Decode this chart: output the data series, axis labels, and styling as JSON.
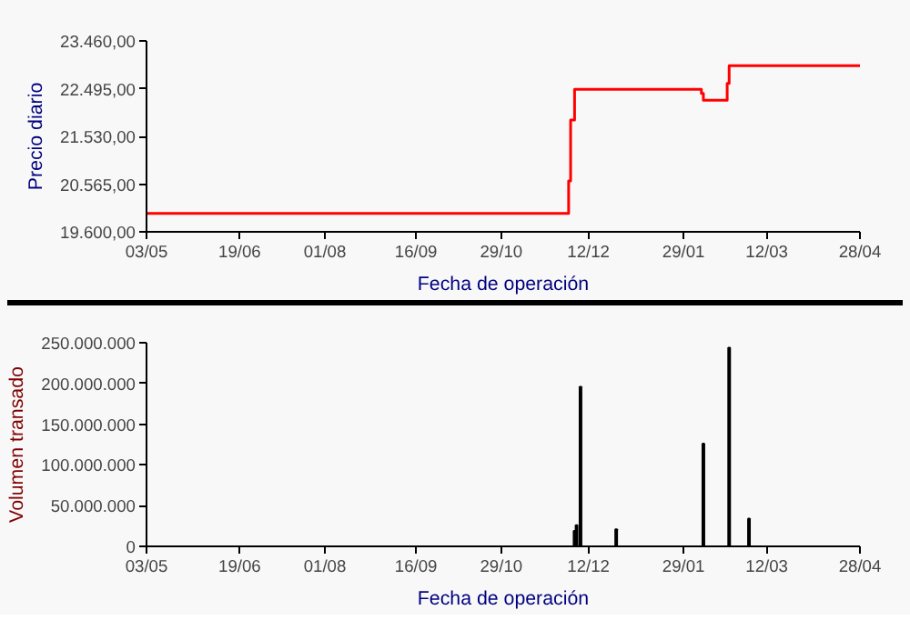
{
  "chart_data": [
    {
      "type": "step",
      "xlabel": "Fecha de operación",
      "ylabel": "Precio diario",
      "x": [
        "2006-05-03",
        "2006-12-02",
        "2006-12-03",
        "2006-12-05",
        "2007-02-07",
        "2007-02-08",
        "2007-02-20",
        "2007-02-21",
        "2007-04-28"
      ],
      "series": [
        {
          "color": "#ff0000",
          "values": [
            19970,
            20630,
            21860,
            22480,
            22400,
            22260,
            22600,
            22960,
            22960
          ]
        }
      ],
      "xlim": [
        "2006-05-03",
        "2007-04-28"
      ],
      "xticks": [
        {
          "value": "2006-05-03",
          "label": "03/05"
        },
        {
          "value": "2006-06-19",
          "label": "19/06"
        },
        {
          "value": "2006-08-01",
          "label": "01/08"
        },
        {
          "value": "2006-09-16",
          "label": "16/09"
        },
        {
          "value": "2006-10-29",
          "label": "29/10"
        },
        {
          "value": "2006-12-12",
          "label": "12/12"
        },
        {
          "value": "2007-01-29",
          "label": "29/01"
        },
        {
          "value": "2007-03-12",
          "label": "12/03"
        },
        {
          "value": "2007-04-28",
          "label": "28/04"
        }
      ],
      "ylim": [
        19600,
        23460
      ],
      "yticks": [
        {
          "value": 19600,
          "label": "19.600,00"
        },
        {
          "value": 20565,
          "label": "20.565,00"
        },
        {
          "value": 21530,
          "label": "21.530,00"
        },
        {
          "value": 22495,
          "label": "22.495,00"
        },
        {
          "value": 23460,
          "label": "23.460,00"
        }
      ],
      "grid": false
    },
    {
      "type": "bar",
      "xlabel": "Fecha de operación",
      "ylabel": "Volumen transado",
      "x": [
        "2006-12-05",
        "2006-12-06",
        "2006-12-08",
        "2006-12-26",
        "2007-02-08",
        "2007-02-21",
        "2007-03-03"
      ],
      "series": [
        {
          "color": "#000000",
          "values": [
            19000000,
            26000000,
            196000000,
            21000000,
            126000000,
            244000000,
            34000000
          ]
        }
      ],
      "xlim": [
        "2006-05-03",
        "2007-04-28"
      ],
      "xticks": [
        {
          "value": "2006-05-03",
          "label": "03/05"
        },
        {
          "value": "2006-06-19",
          "label": "19/06"
        },
        {
          "value": "2006-08-01",
          "label": "01/08"
        },
        {
          "value": "2006-09-16",
          "label": "16/09"
        },
        {
          "value": "2006-10-29",
          "label": "29/10"
        },
        {
          "value": "2006-12-12",
          "label": "12/12"
        },
        {
          "value": "2007-01-29",
          "label": "29/01"
        },
        {
          "value": "2007-03-12",
          "label": "12/03"
        },
        {
          "value": "2007-04-28",
          "label": "28/04"
        }
      ],
      "ylim": [
        0,
        250000000
      ],
      "yticks": [
        0,
        {
          "value": 50000000,
          "label": "50.000.000"
        },
        {
          "value": 100000000,
          "label": "100.000.000"
        },
        {
          "value": 150000000,
          "label": "150.000.000"
        },
        {
          "value": 200000000,
          "label": "200.000.000"
        },
        {
          "value": 250000000,
          "label": "250.000.000"
        }
      ],
      "grid": false
    }
  ]
}
